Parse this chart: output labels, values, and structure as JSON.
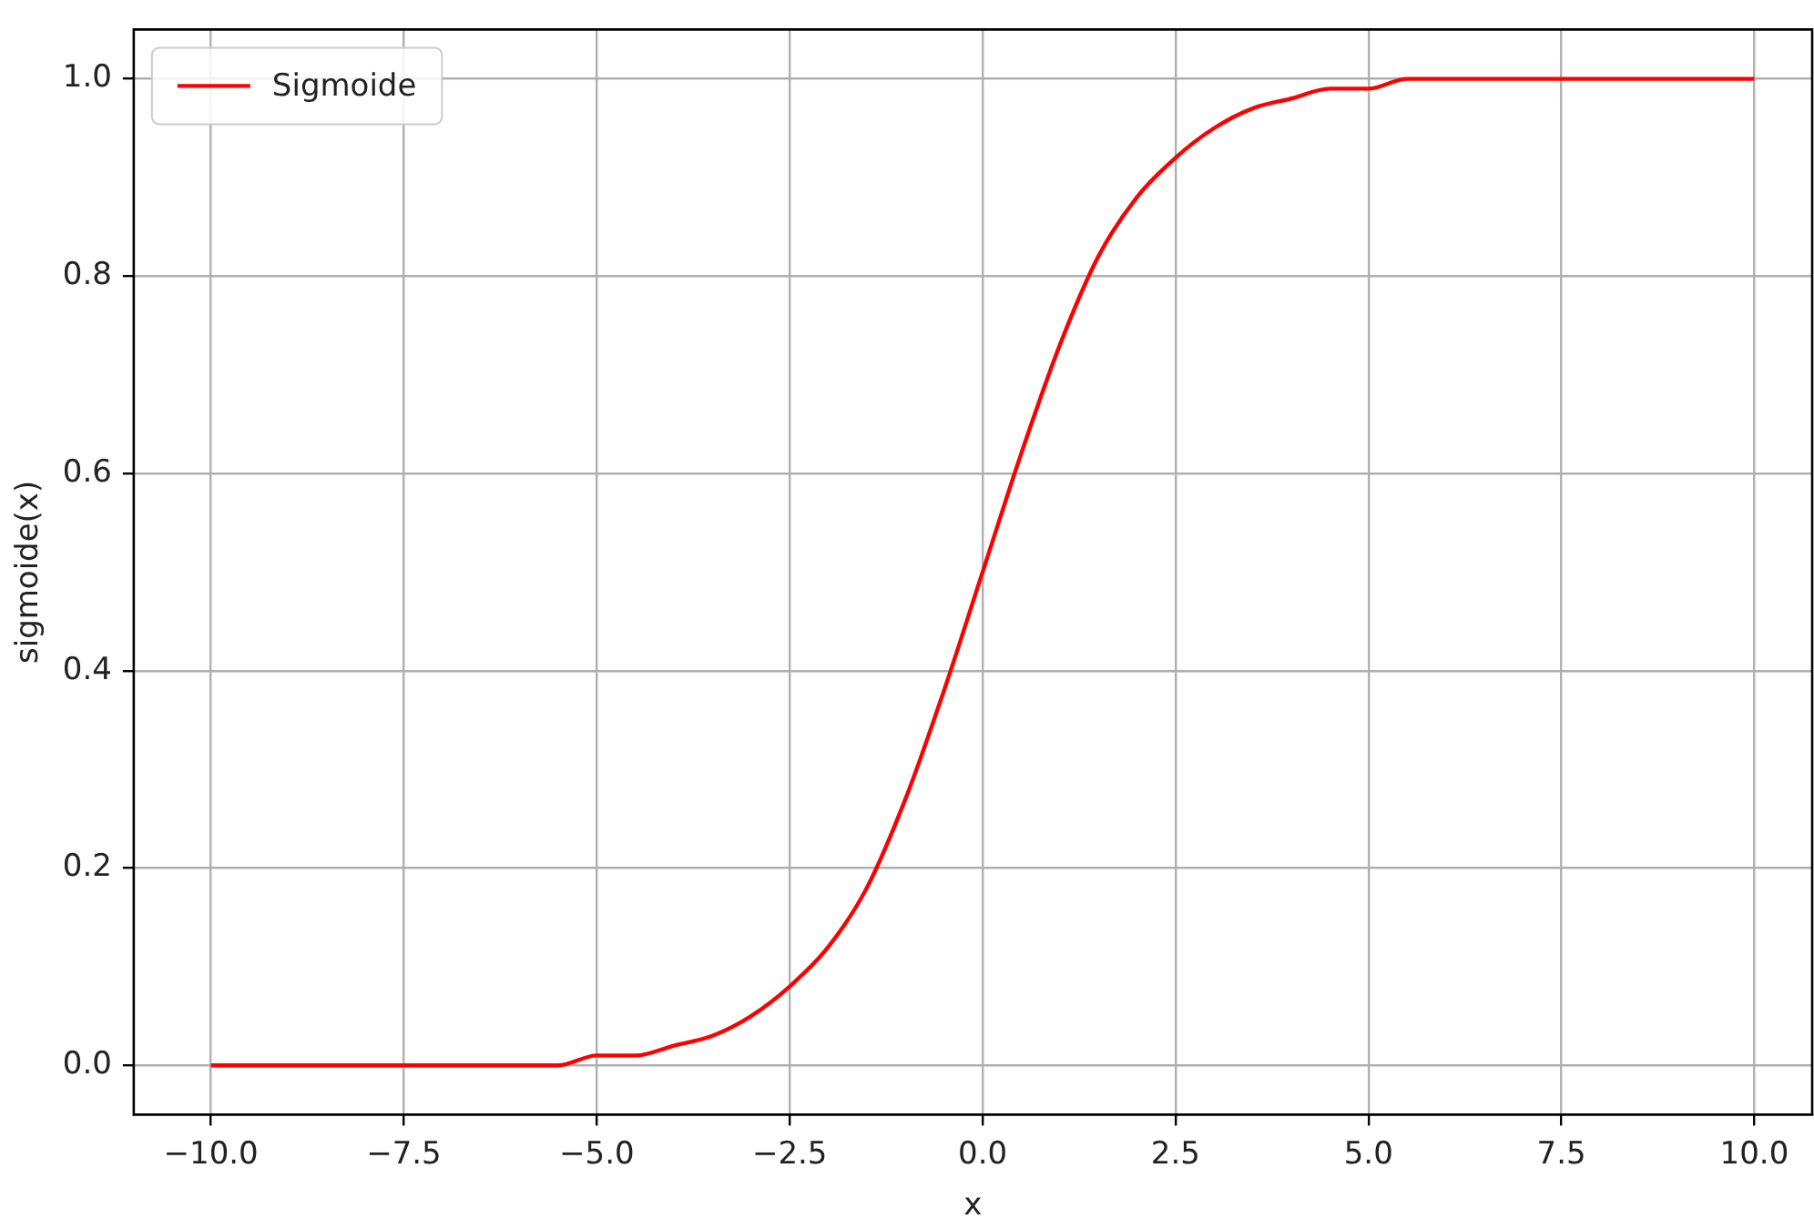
{
  "chart_data": {
    "type": "line",
    "xlabel": "x",
    "ylabel": "sigmoide(x)",
    "x": [
      -10,
      -9.5,
      -9,
      -8.5,
      -8,
      -7.5,
      -7,
      -6.5,
      -6,
      -5.5,
      -5,
      -4.5,
      -4,
      -3.5,
      -3,
      -2.5,
      -2,
      -1.5,
      -1,
      -0.5,
      0,
      0.5,
      1,
      1.5,
      2,
      2.5,
      3,
      3.5,
      4,
      4.5,
      5,
      5.5,
      6,
      6.5,
      7,
      7.5,
      8,
      8.5,
      9,
      9.5,
      10
    ],
    "series": [
      {
        "name": "Sigmoide",
        "color": "#ff0000",
        "values": [
          0,
          0,
          0,
          0,
          0,
          0,
          0,
          0,
          0,
          0,
          0.01,
          0.01,
          0.02,
          0.03,
          0.05,
          0.08,
          0.12,
          0.18,
          0.27,
          0.38,
          0.5,
          0.62,
          0.73,
          0.82,
          0.88,
          0.92,
          0.95,
          0.97,
          0.98,
          0.99,
          0.99,
          1,
          1,
          1,
          1,
          1,
          1,
          1,
          1,
          1,
          1
        ]
      }
    ],
    "xlim": [
      -11,
      10.75
    ],
    "ylim": [
      -0.05,
      1.05
    ],
    "xticks": [
      {
        "value": -10,
        "label": "−10.0"
      },
      {
        "value": -7.5,
        "label": "−7.5"
      },
      {
        "value": -5,
        "label": "−5.0"
      },
      {
        "value": -2.5,
        "label": "−2.5"
      },
      {
        "value": 0,
        "label": "0.0"
      },
      {
        "value": 2.5,
        "label": "2.5"
      },
      {
        "value": 5,
        "label": "5.0"
      },
      {
        "value": 7.5,
        "label": "7.5"
      },
      {
        "value": 10,
        "label": "10.0"
      }
    ],
    "yticks": [
      {
        "value": 0,
        "label": "0.0"
      },
      {
        "value": 0.2,
        "label": "0.2"
      },
      {
        "value": 0.4,
        "label": "0.4"
      },
      {
        "value": 0.6,
        "label": "0.6"
      },
      {
        "value": 0.8,
        "label": "0.8"
      },
      {
        "value": 1,
        "label": "1.0"
      }
    ],
    "grid": true,
    "legend": "top left",
    "marker": "none",
    "line_style": "solid"
  }
}
